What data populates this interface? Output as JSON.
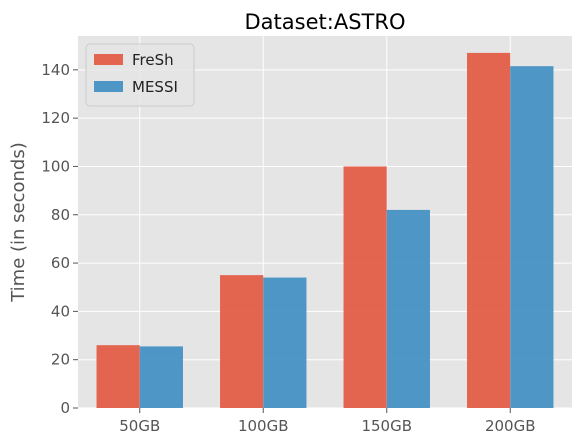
{
  "chart_data": {
    "type": "bar",
    "title": "Dataset:ASTRO",
    "xlabel": "",
    "ylabel": "Time (in seconds)",
    "categories": [
      "50GB",
      "100GB",
      "150GB",
      "200GB"
    ],
    "series": [
      {
        "name": "FreSh",
        "color": "#e2553e",
        "values": [
          26,
          55,
          100,
          147
        ]
      },
      {
        "name": "MESSI",
        "color": "#3d8dc2",
        "values": [
          25.5,
          54,
          82,
          141.5
        ]
      }
    ],
    "ylim": [
      0,
      154
    ],
    "yticks": [
      0,
      20,
      40,
      60,
      80,
      100,
      120,
      140
    ],
    "grid": true,
    "legend_position": "top-left",
    "background_color": "#e5e5e5",
    "grid_color": "#ffffff"
  }
}
